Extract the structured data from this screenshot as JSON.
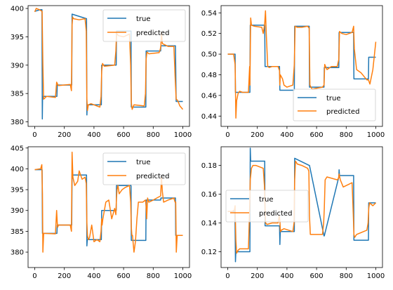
{
  "colors": {
    "true": "#1f77b4",
    "predicted": "#ff7f0e"
  },
  "chart_data": [
    {
      "type": "line",
      "xlim": [
        -45,
        1045
      ],
      "ylim": [
        379.2,
        400.5
      ],
      "xticks": [
        0,
        200,
        400,
        600,
        800,
        1000
      ],
      "yticks": [
        380,
        385,
        390,
        395,
        400
      ],
      "legend_position": "upper right",
      "series": [
        {
          "name": "true",
          "x": [
            0,
            40,
            49,
            51,
            53,
            60,
            150,
            152,
            250,
            252,
            350,
            352,
            355,
            450,
            452,
            550,
            552,
            650,
            652,
            750,
            752,
            850,
            852,
            950,
            955,
            1000
          ],
          "y": [
            399.5,
            399.8,
            399.8,
            380.5,
            384.5,
            384.5,
            384.5,
            386.5,
            386.5,
            399.0,
            398.2,
            381.2,
            383.0,
            383.0,
            390.0,
            390.0,
            396.0,
            396.0,
            382.6,
            382.6,
            392.5,
            392.5,
            393.4,
            393.4,
            383.6,
            383.6
          ]
        },
        {
          "name": "predicted",
          "x": [
            0,
            10,
            30,
            50,
            55,
            60,
            80,
            140,
            148,
            155,
            160,
            240,
            248,
            252,
            256,
            262,
            300,
            340,
            348,
            352,
            356,
            362,
            380,
            440,
            448,
            452,
            458,
            470,
            540,
            548,
            552,
            556,
            565,
            600,
            640,
            648,
            652,
            658,
            670,
            740,
            748,
            752,
            758,
            770,
            840,
            848,
            852,
            856,
            862,
            900,
            940,
            948,
            955,
            965,
            980,
            1000
          ],
          "y": [
            399.4,
            400.0,
            399.8,
            399.5,
            390.0,
            384.0,
            384.5,
            384.3,
            387.0,
            386.6,
            386.4,
            386.6,
            385.5,
            397.0,
            398.5,
            398.2,
            398.0,
            398.2,
            396.0,
            384.0,
            382.0,
            383.0,
            383.2,
            382.6,
            384.5,
            389.0,
            390.3,
            389.8,
            390.0,
            392.5,
            395.5,
            395.5,
            395.2,
            395.0,
            395.5,
            390.0,
            383.5,
            382.2,
            383.0,
            382.8,
            385.0,
            391.0,
            392.3,
            392.0,
            392.2,
            392.8,
            393.5,
            395.8,
            393.8,
            393.3,
            393.3,
            388.0,
            384.0,
            383.8,
            382.8,
            382.2
          ]
        }
      ]
    },
    {
      "type": "line",
      "xlim": [
        -45,
        1045
      ],
      "ylim": [
        0.43,
        0.547
      ],
      "xticks": [
        0,
        200,
        400,
        600,
        800,
        1000
      ],
      "yticks": [
        0.44,
        0.46,
        0.48,
        0.5,
        0.52,
        0.54
      ],
      "legend_position": "lower right",
      "series": [
        {
          "name": "true",
          "x": [
            0,
            50,
            52,
            150,
            152,
            250,
            252,
            350,
            352,
            450,
            452,
            550,
            552,
            650,
            652,
            750,
            752,
            850,
            852,
            950,
            952,
            1000
          ],
          "y": [
            0.5,
            0.5,
            0.463,
            0.463,
            0.528,
            0.528,
            0.488,
            0.488,
            0.465,
            0.465,
            0.527,
            0.527,
            0.468,
            0.468,
            0.487,
            0.487,
            0.521,
            0.521,
            0.476,
            0.476,
            0.497,
            0.497
          ]
        },
        {
          "name": "predicted",
          "x": [
            0,
            40,
            50,
            55,
            60,
            70,
            80,
            100,
            140,
            148,
            150,
            152,
            155,
            160,
            180,
            230,
            240,
            250,
            255,
            260,
            270,
            280,
            300,
            340,
            350,
            352,
            355,
            370,
            380,
            400,
            440,
            450,
            455,
            470,
            500,
            540,
            550,
            555,
            570,
            600,
            640,
            650,
            655,
            670,
            700,
            740,
            750,
            755,
            770,
            800,
            840,
            850,
            855,
            870,
            900,
            940,
            950,
            960,
            980,
            1000
          ],
          "y": [
            0.5,
            0.5,
            0.49,
            0.438,
            0.455,
            0.462,
            0.464,
            0.463,
            0.463,
            0.488,
            0.47,
            0.5,
            0.535,
            0.528,
            0.527,
            0.526,
            0.52,
            0.53,
            0.542,
            0.52,
            0.488,
            0.487,
            0.488,
            0.488,
            0.484,
            0.47,
            0.48,
            0.476,
            0.47,
            0.468,
            0.47,
            0.49,
            0.527,
            0.526,
            0.526,
            0.527,
            0.525,
            0.47,
            0.466,
            0.467,
            0.468,
            0.47,
            0.49,
            0.485,
            0.488,
            0.488,
            0.495,
            0.522,
            0.52,
            0.519,
            0.521,
            0.527,
            0.505,
            0.485,
            0.482,
            0.475,
            0.475,
            0.471,
            0.485,
            0.512
          ]
        }
      ]
    },
    {
      "type": "line",
      "xlim": [
        -45,
        1045
      ],
      "ylim": [
        376.3,
        405.3
      ],
      "xticks": [
        0,
        200,
        400,
        600,
        800,
        1000
      ],
      "yticks": [
        380,
        385,
        390,
        395,
        400,
        405
      ],
      "legend_position": "upper right",
      "series": [
        {
          "name": "true",
          "x": [
            0,
            50,
            52,
            150,
            152,
            250,
            252,
            350,
            352,
            355,
            450,
            452,
            550,
            552,
            650,
            652,
            750,
            752,
            850,
            852,
            950,
            952,
            1000
          ],
          "y": [
            399.8,
            399.8,
            384.5,
            384.5,
            386.5,
            386.5,
            398.5,
            398.5,
            381.5,
            383.0,
            383.0,
            390.0,
            390.0,
            396.0,
            396.0,
            382.8,
            382.8,
            392.5,
            392.5,
            393.0,
            393.0,
            384.0,
            384.0
          ]
        },
        {
          "name": "predicted",
          "x": [
            0,
            40,
            48,
            52,
            55,
            60,
            70,
            140,
            148,
            152,
            155,
            160,
            240,
            248,
            252,
            258,
            270,
            290,
            300,
            320,
            340,
            348,
            352,
            356,
            362,
            370,
            385,
            400,
            420,
            440,
            448,
            452,
            455,
            460,
            470,
            480,
            500,
            520,
            540,
            548,
            552,
            556,
            562,
            570,
            590,
            610,
            640,
            648,
            652,
            656,
            660,
            670,
            680,
            690,
            700,
            730,
            748,
            752,
            756,
            762,
            770,
            800,
            850,
            856,
            862,
            870,
            900,
            940,
            948,
            952,
            956,
            962,
            980,
            1000
          ],
          "y": [
            399.8,
            400.0,
            401.0,
            394.0,
            380.0,
            384.5,
            384.5,
            384.4,
            390.0,
            387.0,
            386.0,
            386.5,
            386.5,
            385.0,
            404.0,
            398.0,
            396.0,
            397.0,
            399.5,
            397.5,
            398.0,
            396.5,
            387.0,
            384.0,
            383.0,
            383.5,
            386.5,
            382.5,
            383.0,
            382.5,
            385.0,
            388.0,
            386.5,
            388.0,
            390.0,
            392.0,
            392.5,
            388.0,
            390.5,
            389.0,
            393.0,
            395.0,
            396.0,
            394.0,
            395.0,
            395.5,
            396.0,
            392.0,
            386.0,
            384.0,
            384.0,
            380.0,
            382.5,
            388.0,
            392.0,
            392.0,
            392.5,
            391.0,
            388.0,
            393.0,
            392.0,
            392.5,
            393.5,
            398.0,
            394.5,
            392.0,
            392.5,
            393.0,
            392.0,
            392.0,
            380.0,
            384.0,
            384.0,
            384.0
          ]
        }
      ]
    },
    {
      "type": "line",
      "xlim": [
        -45,
        1045
      ],
      "ylim": [
        0.109,
        0.193
      ],
      "xticks": [
        0,
        200,
        400,
        600,
        800,
        1000
      ],
      "yticks": [
        0.12,
        0.14,
        0.16,
        0.18
      ],
      "legend_position": "center left",
      "series": [
        {
          "name": "true",
          "x": [
            0,
            48,
            50,
            52,
            55,
            150,
            152,
            155,
            250,
            252,
            350,
            352,
            355,
            450,
            452,
            550,
            552,
            650,
            652,
            750,
            752,
            755,
            850,
            852,
            950,
            952,
            1000
          ],
          "y": [
            0.148,
            0.148,
            0.138,
            0.113,
            0.12,
            0.12,
            0.192,
            0.183,
            0.183,
            0.138,
            0.138,
            0.125,
            0.134,
            0.134,
            0.185,
            0.18,
            0.18,
            0.131,
            0.131,
            0.172,
            0.177,
            0.173,
            0.173,
            0.128,
            0.128,
            0.154,
            0.154
          ]
        },
        {
          "name": "predicted",
          "x": [
            0,
            30,
            45,
            50,
            55,
            60,
            70,
            80,
            140,
            148,
            152,
            160,
            170,
            190,
            240,
            248,
            252,
            256,
            265,
            300,
            340,
            348,
            352,
            356,
            362,
            380,
            440,
            448,
            452,
            458,
            470,
            500,
            540,
            548,
            552,
            558,
            570,
            600,
            640,
            648,
            652,
            658,
            670,
            740,
            748,
            752,
            760,
            780,
            840,
            848,
            852,
            858,
            870,
            940,
            948,
            952,
            958,
            980,
            1000
          ],
          "y": [
            0.148,
            0.148,
            0.149,
            0.152,
            0.128,
            0.119,
            0.121,
            0.122,
            0.122,
            0.15,
            0.17,
            0.178,
            0.18,
            0.18,
            0.178,
            0.166,
            0.15,
            0.14,
            0.139,
            0.14,
            0.14,
            0.145,
            0.142,
            0.134,
            0.135,
            0.136,
            0.134,
            0.14,
            0.17,
            0.183,
            0.181,
            0.18,
            0.178,
            0.176,
            0.145,
            0.132,
            0.132,
            0.132,
            0.132,
            0.14,
            0.15,
            0.17,
            0.172,
            0.17,
            0.171,
            0.174,
            0.17,
            0.165,
            0.168,
            0.146,
            0.132,
            0.13,
            0.132,
            0.135,
            0.14,
            0.15,
            0.154,
            0.152,
            0.154
          ]
        }
      ]
    }
  ]
}
